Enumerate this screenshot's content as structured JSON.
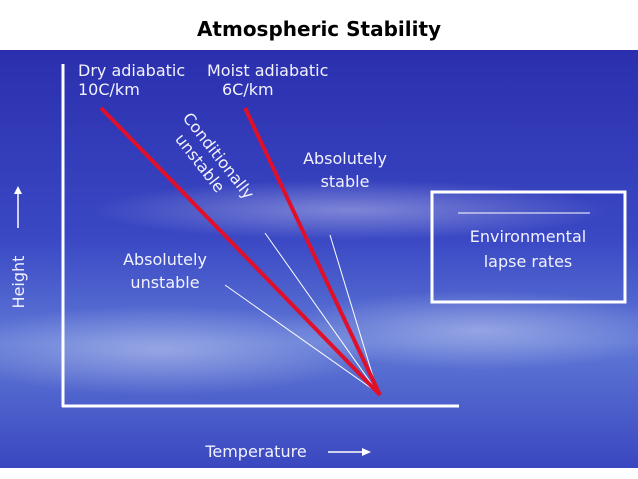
{
  "title": "Atmospheric Stability",
  "dry_adiabatic": {
    "lines": [
      "Dry adiabatic",
      "10C/km"
    ]
  },
  "moist_adiabatic": {
    "lines": [
      "Moist adiabatic",
      "6C/km"
    ]
  },
  "regions": {
    "conditionally_unstable": [
      "Conditionally",
      "unstable"
    ],
    "absolutely_stable": [
      "Absolutely",
      "stable"
    ],
    "absolutely_unstable": [
      "Absolutely",
      "unstable"
    ]
  },
  "legend": {
    "lines": [
      "Environmental",
      "lapse rates"
    ]
  },
  "axes": {
    "y_label": "Height",
    "x_label": "Temperature"
  }
}
